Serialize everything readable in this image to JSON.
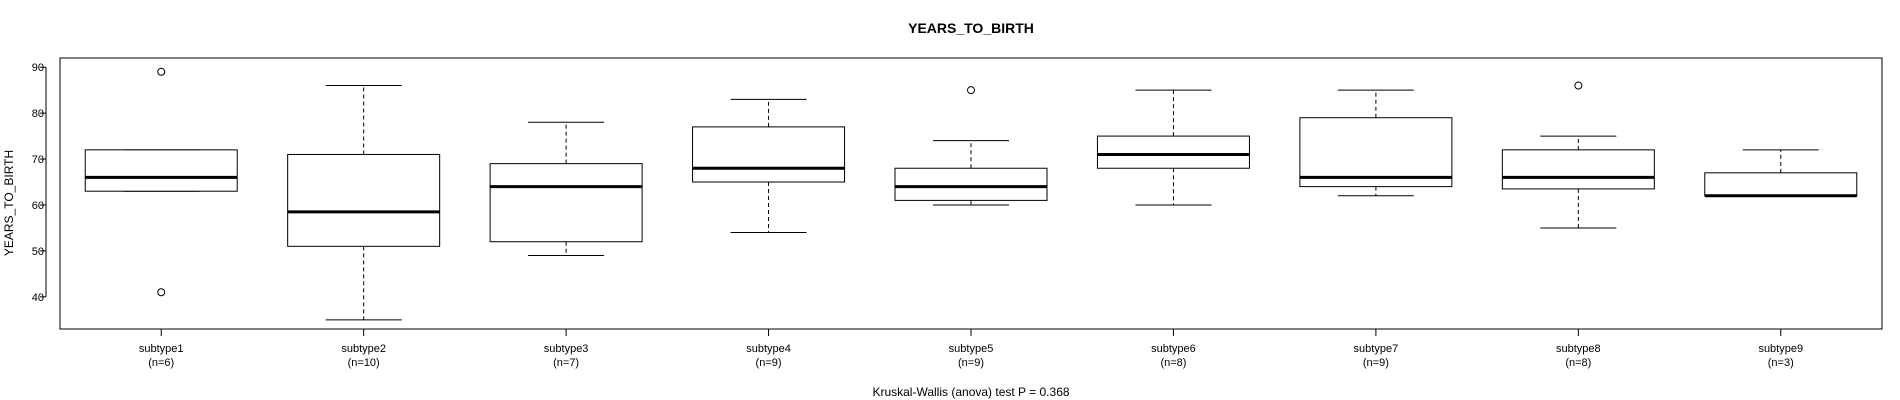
{
  "chart_data": {
    "type": "boxplot",
    "title": "YEARS_TO_BIRTH",
    "ylabel": "YEARS_TO_BIRTH",
    "xlabel": "Kruskal-Wallis (anova) test P = 0.368",
    "ylim": [
      33,
      92
    ],
    "yticks": [
      40,
      50,
      60,
      70,
      80,
      90
    ],
    "grid": false,
    "groups": [
      {
        "name": "subtype1",
        "n_label": "(n=6)",
        "whisker_low": 63,
        "q1": 63,
        "median": 66,
        "q3": 72,
        "whisker_high": 72,
        "outliers": [
          89,
          41
        ]
      },
      {
        "name": "subtype2",
        "n_label": "(n=10)",
        "whisker_low": 35,
        "q1": 51,
        "median": 58.5,
        "q3": 71,
        "whisker_high": 86,
        "outliers": []
      },
      {
        "name": "subtype3",
        "n_label": "(n=7)",
        "whisker_low": 49,
        "q1": 52,
        "median": 64,
        "q3": 69,
        "whisker_high": 78,
        "outliers": []
      },
      {
        "name": "subtype4",
        "n_label": "(n=9)",
        "whisker_low": 54,
        "q1": 65,
        "median": 68,
        "q3": 77,
        "whisker_high": 83,
        "outliers": []
      },
      {
        "name": "subtype5",
        "n_label": "(n=9)",
        "whisker_low": 60,
        "q1": 61,
        "median": 64,
        "q3": 68,
        "whisker_high": 74,
        "outliers": [
          85
        ]
      },
      {
        "name": "subtype6",
        "n_label": "(n=8)",
        "whisker_low": 60,
        "q1": 68,
        "median": 71,
        "q3": 75,
        "whisker_high": 85,
        "outliers": []
      },
      {
        "name": "subtype7",
        "n_label": "(n=9)",
        "whisker_low": 62,
        "q1": 64,
        "median": 66,
        "q3": 79,
        "whisker_high": 85,
        "outliers": []
      },
      {
        "name": "subtype8",
        "n_label": "(n=8)",
        "whisker_low": 55,
        "q1": 63.5,
        "median": 66,
        "q3": 72,
        "whisker_high": 75,
        "outliers": [
          86
        ]
      },
      {
        "name": "subtype9",
        "n_label": "(n=3)",
        "whisker_low": 62,
        "q1": 62,
        "median": 62,
        "q3": 67,
        "whisker_high": 72,
        "outliers": []
      }
    ]
  }
}
